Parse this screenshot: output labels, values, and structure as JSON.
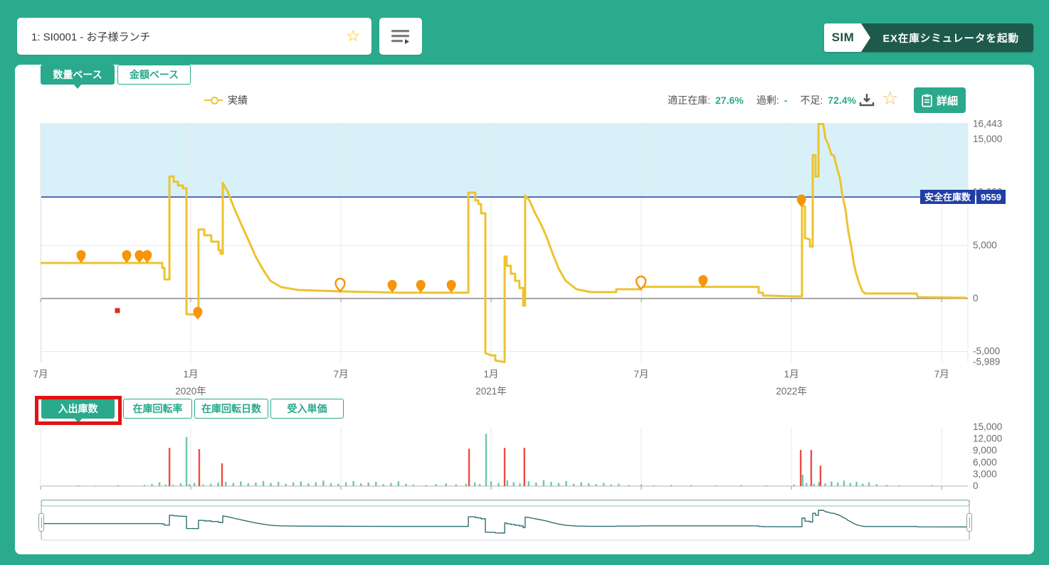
{
  "toolbar": {
    "item_value": "1: SI0001 - お子様ランチ",
    "favorite_icon": "☆",
    "sim_badge": "SIM",
    "sim_button_label": "EX在庫シミュレータを起動"
  },
  "panel": {
    "base_tabs": {
      "quantity": "数量ベース",
      "amount": "金額ベース"
    },
    "legend_label": "実績",
    "stats": {
      "optimal_label": "適正在庫:",
      "optimal_value": "27.6%",
      "excess_label": "過剰:",
      "excess_value": "-",
      "shortage_label": "不足:",
      "shortage_value": "72.4%"
    },
    "favorite_icon": "☆",
    "detail_button_label": "詳細",
    "metric_tabs": {
      "inout": "入出庫数",
      "turnover_rate": "在庫回転率",
      "turnover_days": "在庫回転日数",
      "unit_price": "受入単価"
    }
  },
  "safety_badge": {
    "label": "安全在庫数",
    "value": "9559"
  },
  "colors": {
    "page_bg": "#2bab8e",
    "teal": "#2aa98c",
    "dark_green": "#1e5a4b",
    "series_yellow": "#edc32f",
    "pin_orange": "#f79409",
    "band_blue": "#d8f1f8",
    "safety_navy": "#1f3fa6",
    "bar_red": "#ef4b45",
    "bar_green": "#6cc7b0",
    "nav_line": "#2e6f70",
    "highlight_red": "#e01414",
    "grid": "#e8e8e8",
    "axis_text": "#6b6b6b",
    "zero_axis": "#8a8a8a"
  },
  "chart_data": [
    {
      "type": "line",
      "title": "",
      "x_unit": "months since 2019-07",
      "ylim": [
        -5989,
        16900
      ],
      "safety_stock": 9559,
      "x_ticks": [
        {
          "m": 0,
          "label": "7月"
        },
        {
          "m": 6,
          "label": "1月"
        },
        {
          "m": 12,
          "label": "7月"
        },
        {
          "m": 18,
          "label": "1月"
        },
        {
          "m": 24,
          "label": "7月"
        },
        {
          "m": 30,
          "label": "1月"
        },
        {
          "m": 36,
          "label": "7月"
        }
      ],
      "year_labels": [
        {
          "m": 6,
          "label": "2020年"
        },
        {
          "m": 18,
          "label": "2021年"
        },
        {
          "m": 30,
          "label": "2022年"
        }
      ],
      "y_ticks": [
        {
          "v": 16443,
          "label": "16,443"
        },
        {
          "v": 15000,
          "label": "15,000"
        },
        {
          "v": 10000,
          "label": "10,000"
        },
        {
          "v": 5000,
          "label": "5,000"
        },
        {
          "v": 0,
          "label": "0"
        },
        {
          "v": -5000,
          "label": "-5,000"
        },
        {
          "v": -5989,
          "label": "-5,989"
        }
      ],
      "grid_values": [
        5000,
        -5000
      ],
      "series": [
        {
          "name": "実績",
          "color": "#edc32f",
          "points": [
            [
              0,
              3350
            ],
            [
              4.86,
              3350
            ],
            [
              4.86,
              2880
            ],
            [
              4.95,
              2880
            ],
            [
              4.95,
              1800
            ],
            [
              5.15,
              1800
            ],
            [
              5.15,
              11500
            ],
            [
              5.32,
              11500
            ],
            [
              5.32,
              11000
            ],
            [
              5.49,
              11000
            ],
            [
              5.49,
              10650
            ],
            [
              5.69,
              10650
            ],
            [
              5.69,
              10380
            ],
            [
              5.83,
              10380
            ],
            [
              5.83,
              -1470
            ],
            [
              6.31,
              -1540
            ],
            [
              6.31,
              6500
            ],
            [
              6.54,
              6500
            ],
            [
              6.54,
              5960
            ],
            [
              6.82,
              5960
            ],
            [
              6.82,
              5360
            ],
            [
              7.11,
              5360
            ],
            [
              7.11,
              4550
            ],
            [
              7.19,
              4550
            ],
            [
              7.19,
              4220
            ],
            [
              7.28,
              4220
            ],
            [
              7.28,
              10900
            ],
            [
              7.48,
              10040
            ],
            [
              7.76,
              8370
            ],
            [
              8.05,
              6830
            ],
            [
              8.33,
              5360
            ],
            [
              8.61,
              3880
            ],
            [
              8.9,
              2680
            ],
            [
              9.18,
              1670
            ],
            [
              9.61,
              1070
            ],
            [
              10.32,
              800
            ],
            [
              12.03,
              670
            ],
            [
              14.3,
              540
            ],
            [
              17.09,
              540
            ],
            [
              17.09,
              9980
            ],
            [
              17.37,
              9980
            ],
            [
              17.37,
              9240
            ],
            [
              17.49,
              9240
            ],
            [
              17.49,
              8900
            ],
            [
              17.6,
              8900
            ],
            [
              17.6,
              8030
            ],
            [
              17.77,
              8030
            ],
            [
              17.77,
              -5150
            ],
            [
              18.0,
              -5360
            ],
            [
              18.17,
              -5360
            ],
            [
              18.17,
              -5830
            ],
            [
              18.54,
              -5990
            ],
            [
              18.54,
              3950
            ],
            [
              18.62,
              3950
            ],
            [
              18.62,
              3080
            ],
            [
              18.79,
              3080
            ],
            [
              18.79,
              2340
            ],
            [
              18.96,
              2340
            ],
            [
              18.96,
              1670
            ],
            [
              19.13,
              1670
            ],
            [
              19.13,
              1000
            ],
            [
              19.28,
              1000
            ],
            [
              19.28,
              -670
            ],
            [
              19.36,
              -670
            ],
            [
              19.36,
              9700
            ],
            [
              19.53,
              9240
            ],
            [
              19.76,
              8030
            ],
            [
              19.99,
              7030
            ],
            [
              20.21,
              5830
            ],
            [
              20.44,
              4350
            ],
            [
              20.7,
              2810
            ],
            [
              20.98,
              1670
            ],
            [
              21.41,
              870
            ],
            [
              21.98,
              600
            ],
            [
              23.0,
              600
            ],
            [
              23.0,
              870
            ],
            [
              23.99,
              870
            ],
            [
              23.99,
              1100
            ],
            [
              28.69,
              1100
            ],
            [
              28.69,
              540
            ],
            [
              28.86,
              540
            ],
            [
              28.86,
              270
            ],
            [
              29.09,
              270
            ],
            [
              30.08,
              200
            ],
            [
              30.42,
              200
            ],
            [
              30.42,
              8700
            ],
            [
              30.54,
              8700
            ],
            [
              30.54,
              5690
            ],
            [
              30.74,
              5560
            ],
            [
              30.74,
              4890
            ],
            [
              30.85,
              4890
            ],
            [
              30.85,
              13500
            ],
            [
              30.96,
              13500
            ],
            [
              30.96,
              11500
            ],
            [
              31.08,
              11500
            ],
            [
              31.08,
              16443
            ],
            [
              31.27,
              16443
            ],
            [
              31.36,
              15070
            ],
            [
              31.47,
              14530
            ],
            [
              31.59,
              13590
            ],
            [
              31.7,
              13460
            ],
            [
              31.81,
              12390
            ],
            [
              31.93,
              11380
            ],
            [
              32.04,
              9710
            ],
            [
              32.16,
              8370
            ],
            [
              32.27,
              6360
            ],
            [
              32.38,
              5020
            ],
            [
              32.5,
              3210
            ],
            [
              32.61,
              2140
            ],
            [
              32.72,
              1340
            ],
            [
              32.84,
              670
            ],
            [
              32.95,
              470
            ],
            [
              35.0,
              470
            ],
            [
              35.05,
              130
            ],
            [
              37.0,
              70
            ]
          ]
        }
      ],
      "markers_filled": [
        [
          1.62,
          3350
        ],
        [
          3.44,
          3350
        ],
        [
          3.95,
          3350
        ],
        [
          4.26,
          3350
        ],
        [
          6.28,
          -2000
        ],
        [
          14.05,
          540
        ],
        [
          15.19,
          540
        ],
        [
          16.41,
          540
        ],
        [
          26.47,
          1000
        ],
        [
          30.4,
          8600
        ]
      ],
      "markers_open": [
        [
          11.97,
          670
        ],
        [
          23.99,
          870
        ]
      ],
      "red_square": [
        3.07,
        -1140
      ]
    },
    {
      "type": "bar",
      "title": "入出庫数",
      "ylim": [
        0,
        15000
      ],
      "y_ticks": [
        {
          "v": 15000,
          "label": "15,000"
        },
        {
          "v": 12000,
          "label": "12,000"
        },
        {
          "v": 9000,
          "label": "9,000"
        },
        {
          "v": 6000,
          "label": "6,000"
        },
        {
          "v": 3000,
          "label": "3,000"
        },
        {
          "v": 0,
          "label": "0"
        }
      ],
      "series": [
        {
          "name": "green-bars",
          "color": "#6cc7b0",
          "bars": [
            [
              1.5,
              200
            ],
            [
              2.2,
              150
            ],
            [
              3.1,
              250
            ],
            [
              4.15,
              300
            ],
            [
              4.45,
              550
            ],
            [
              4.75,
              950
            ],
            [
              5.0,
              400
            ],
            [
              5.3,
              350
            ],
            [
              5.6,
              700
            ],
            [
              5.83,
              12500
            ],
            [
              5.95,
              500
            ],
            [
              6.15,
              800
            ],
            [
              6.5,
              400
            ],
            [
              6.8,
              600
            ],
            [
              7.1,
              900
            ],
            [
              7.4,
              1100
            ],
            [
              7.7,
              800
            ],
            [
              8.0,
              1200
            ],
            [
              8.3,
              700
            ],
            [
              8.6,
              900
            ],
            [
              8.9,
              1300
            ],
            [
              9.2,
              800
            ],
            [
              9.5,
              1100
            ],
            [
              9.8,
              600
            ],
            [
              10.1,
              900
            ],
            [
              10.4,
              1200
            ],
            [
              10.7,
              700
            ],
            [
              11.0,
              1000
            ],
            [
              11.3,
              1400
            ],
            [
              11.6,
              800
            ],
            [
              11.9,
              600
            ],
            [
              12.2,
              1000
            ],
            [
              12.5,
              1300
            ],
            [
              12.8,
              700
            ],
            [
              13.1,
              900
            ],
            [
              13.4,
              1100
            ],
            [
              13.7,
              500
            ],
            [
              14.0,
              800
            ],
            [
              14.3,
              1200
            ],
            [
              14.6,
              600
            ],
            [
              14.9,
              400
            ],
            [
              15.4,
              300
            ],
            [
              15.8,
              500
            ],
            [
              16.2,
              700
            ],
            [
              16.6,
              450
            ],
            [
              17.0,
              600
            ],
            [
              17.35,
              900
            ],
            [
              17.55,
              500
            ],
            [
              17.8,
              13300
            ],
            [
              18.0,
              1200
            ],
            [
              18.3,
              800
            ],
            [
              18.65,
              1500
            ],
            [
              18.9,
              1000
            ],
            [
              19.15,
              700
            ],
            [
              19.5,
              1200
            ],
            [
              19.8,
              900
            ],
            [
              20.1,
              1500
            ],
            [
              20.4,
              1100
            ],
            [
              20.7,
              800
            ],
            [
              21.0,
              1300
            ],
            [
              21.3,
              600
            ],
            [
              21.6,
              1000
            ],
            [
              21.9,
              700
            ],
            [
              22.2,
              500
            ],
            [
              22.5,
              800
            ],
            [
              22.8,
              400
            ],
            [
              23.1,
              600
            ],
            [
              23.5,
              300
            ],
            [
              24.0,
              400
            ],
            [
              24.5,
              200
            ],
            [
              25.2,
              300
            ],
            [
              26.0,
              250
            ],
            [
              27.0,
              200
            ],
            [
              28.0,
              300
            ],
            [
              29.0,
              200
            ],
            [
              30.1,
              400
            ],
            [
              30.45,
              2900
            ],
            [
              30.6,
              800
            ],
            [
              30.9,
              600
            ],
            [
              31.1,
              1000
            ],
            [
              31.35,
              700
            ],
            [
              31.6,
              1200
            ],
            [
              31.85,
              900
            ],
            [
              32.1,
              1400
            ],
            [
              32.35,
              800
            ],
            [
              32.6,
              1100
            ],
            [
              32.85,
              600
            ],
            [
              33.1,
              900
            ],
            [
              33.4,
              500
            ],
            [
              33.8,
              300
            ],
            [
              34.3,
              200
            ],
            [
              35.6,
              250
            ]
          ]
        },
        {
          "name": "red-bars",
          "color": "#ef4b45",
          "bars": [
            [
              5.15,
              9700
            ],
            [
              6.34,
              9400
            ],
            [
              7.25,
              5800
            ],
            [
              17.12,
              9500
            ],
            [
              18.54,
              9700
            ],
            [
              19.33,
              9700
            ],
            [
              30.37,
              9200
            ],
            [
              30.79,
              9200
            ],
            [
              31.16,
              5200
            ]
          ]
        }
      ]
    },
    {
      "type": "area-line",
      "title": "navigator (mini overview of 実績 series)",
      "uses_series_of_chart": 0
    }
  ]
}
